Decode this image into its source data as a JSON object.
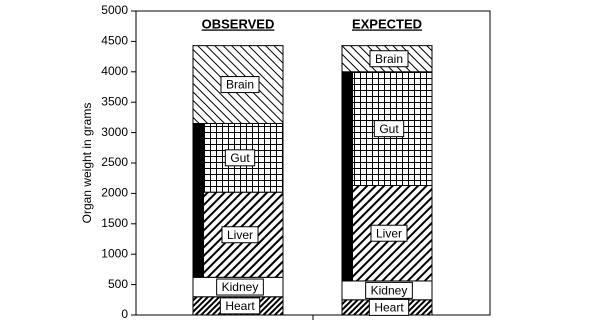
{
  "chart_data": {
    "type": "stacked_bar",
    "y_label": "Organ weight in grams",
    "categories": [
      "OBSERVED",
      "EXPECTED"
    ],
    "series": [
      {
        "name": "Heart",
        "pattern": "dense-back-hatch",
        "values": [
          300,
          250
        ]
      },
      {
        "name": "Kidney",
        "pattern": "plain",
        "values": [
          320,
          310
        ]
      },
      {
        "name": "Liver",
        "pattern": "back-hatch",
        "values": [
          1400,
          1570
        ]
      },
      {
        "name": "Gut",
        "pattern": "grid",
        "values": [
          1130,
          1870
        ]
      },
      {
        "name": "Brain",
        "pattern": "forward-hatch",
        "values": [
          1280,
          430
        ]
      }
    ],
    "black_bars": [
      {
        "from": 620,
        "to": 3150
      },
      {
        "from": 560,
        "to": 3980
      }
    ],
    "ylim": [
      0,
      5000
    ],
    "yticks": [
      0,
      500,
      1000,
      1500,
      2000,
      2500,
      3000,
      3500,
      4000,
      4500,
      5000
    ]
  }
}
